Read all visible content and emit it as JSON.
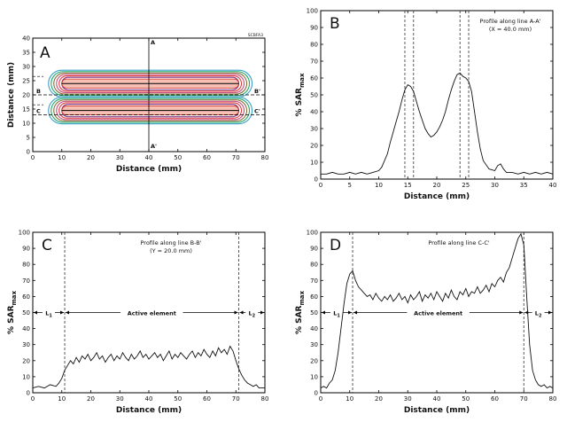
{
  "chart_data": [
    {
      "id": "A",
      "type": "heatmap",
      "panel_letter": "A",
      "xlabel": "Distance (mm)",
      "ylabel": "Distance (mm)",
      "xlim": [
        0,
        80
      ],
      "ylim": [
        0,
        40
      ],
      "xticks": [
        "0",
        "10",
        "20",
        "30",
        "40",
        "50",
        "60",
        "70",
        "80"
      ],
      "yticks": [
        "0",
        "5",
        "10",
        "15",
        "20",
        "25",
        "30",
        "35",
        "40"
      ],
      "corner_label": "SCBFA3",
      "line_labels": {
        "A": "A",
        "A_prime": "A'",
        "B": "B",
        "B_prime": "B'",
        "C": "C",
        "C_prime": "C'"
      },
      "elements": [
        {
          "y_center": 24.0,
          "x_start": 10,
          "x_end": 71,
          "half_width": 2.2
        },
        {
          "y_center": 14.5,
          "x_start": 10,
          "x_end": 71,
          "half_width": 2.2
        }
      ],
      "profile_x": 40,
      "contour_colors": [
        "#3aa0c8",
        "#1fa86a",
        "#8a6d3b",
        "#c94f7c",
        "#e23b3b",
        "#7a3a8c"
      ]
    },
    {
      "id": "B",
      "type": "line",
      "panel_letter": "B",
      "title": "Profile along line A-A'",
      "subtitle": "(X = 40.0 mm)",
      "xlabel": "Distance (mm)",
      "ylabel_main": "% SAR",
      "ylabel_sub": "max",
      "xlim": [
        0,
        40
      ],
      "ylim": [
        0,
        100
      ],
      "xticks": [
        "0",
        "5",
        "10",
        "15",
        "20",
        "25",
        "30",
        "35",
        "40"
      ],
      "yticks": [
        "0",
        "10",
        "20",
        "30",
        "40",
        "50",
        "60",
        "70",
        "80",
        "90",
        "100"
      ],
      "dashed_x": [
        14.5,
        16.0,
        24.0,
        25.5
      ],
      "x": [
        0,
        1,
        2,
        3,
        4,
        5,
        6,
        7,
        8,
        9,
        10,
        10.5,
        11,
        11.5,
        12,
        12.5,
        13,
        13.5,
        14,
        14.5,
        15,
        15.5,
        16,
        16.5,
        17,
        17.5,
        18,
        18.5,
        19,
        19.5,
        20,
        20.5,
        21,
        21.5,
        22,
        22.5,
        23,
        23.5,
        24,
        24.5,
        25,
        25.5,
        26,
        26.5,
        27,
        27.5,
        28,
        29,
        30,
        30.5,
        31,
        31.5,
        32,
        33,
        34,
        35,
        36,
        37,
        38,
        39,
        40
      ],
      "y": [
        3,
        3,
        4,
        3,
        3,
        4,
        3,
        4,
        3,
        4,
        5,
        7,
        11,
        15,
        22,
        28,
        34,
        40,
        47,
        53,
        56,
        55,
        52,
        46,
        40,
        35,
        30,
        27,
        25,
        26,
        28,
        31,
        35,
        40,
        47,
        53,
        58,
        62,
        63,
        61,
        60,
        58,
        52,
        40,
        28,
        18,
        11,
        6,
        5,
        8,
        9,
        6,
        4,
        4,
        3,
        4,
        3,
        4,
        3,
        4,
        3
      ]
    },
    {
      "id": "C",
      "type": "line",
      "panel_letter": "C",
      "title": "Profile along line B-B'",
      "subtitle": "(Y = 20.0 mm)",
      "xlabel": "Distance (mm)",
      "ylabel_main": "% SAR",
      "ylabel_sub": "max",
      "xlim": [
        0,
        80
      ],
      "ylim": [
        0,
        100
      ],
      "xticks": [
        "0",
        "10",
        "20",
        "30",
        "40",
        "50",
        "60",
        "70",
        "80"
      ],
      "yticks": [
        "0",
        "10",
        "20",
        "30",
        "40",
        "50",
        "60",
        "70",
        "80",
        "90",
        "100"
      ],
      "dashed_x": [
        11,
        71
      ],
      "arrow_y": 50,
      "L1": "L",
      "L1_sub": "1",
      "L2": "L",
      "L2_sub": "2",
      "active_label": "Active element",
      "x": [
        0,
        2,
        4,
        6,
        8,
        9,
        10,
        11,
        12,
        13,
        14,
        15,
        16,
        17,
        18,
        19,
        20,
        21,
        22,
        23,
        24,
        25,
        26,
        27,
        28,
        29,
        30,
        31,
        32,
        33,
        34,
        35,
        36,
        37,
        38,
        39,
        40,
        41,
        42,
        43,
        44,
        45,
        46,
        47,
        48,
        49,
        50,
        51,
        52,
        53,
        54,
        55,
        56,
        57,
        58,
        59,
        60,
        61,
        62,
        63,
        64,
        65,
        66,
        67,
        68,
        69,
        70,
        71,
        72,
        73,
        74,
        75,
        76,
        77,
        78,
        80
      ],
      "y": [
        3,
        4,
        3,
        5,
        4,
        6,
        9,
        14,
        17,
        20,
        18,
        22,
        19,
        23,
        21,
        24,
        20,
        22,
        25,
        21,
        23,
        19,
        22,
        24,
        20,
        23,
        21,
        25,
        22,
        20,
        24,
        21,
        23,
        26,
        22,
        24,
        21,
        23,
        25,
        22,
        24,
        20,
        23,
        26,
        21,
        24,
        22,
        25,
        23,
        21,
        24,
        26,
        22,
        25,
        23,
        27,
        24,
        22,
        26,
        23,
        28,
        25,
        27,
        24,
        29,
        26,
        20,
        15,
        11,
        8,
        6,
        5,
        4,
        5,
        3,
        3
      ]
    },
    {
      "id": "D",
      "type": "line",
      "panel_letter": "D",
      "title": "Profile along line C-C'",
      "xlabel": "Distance (mm)",
      "ylabel_main": "% SAR",
      "ylabel_sub": "max",
      "xlim": [
        0,
        80
      ],
      "ylim": [
        0,
        100
      ],
      "xticks": [
        "0",
        "10",
        "20",
        "30",
        "40",
        "50",
        "60",
        "70",
        "80"
      ],
      "yticks": [
        "0",
        "10",
        "20",
        "30",
        "40",
        "50",
        "60",
        "70",
        "80",
        "90",
        "100"
      ],
      "dashed_x": [
        11,
        70
      ],
      "arrow_y": 50,
      "L1": "L",
      "L1_sub": "1",
      "L2": "L",
      "L2_sub": "2",
      "active_label": "Active element",
      "x": [
        0,
        1,
        2,
        3,
        4,
        5,
        6,
        7,
        8,
        9,
        10,
        11,
        12,
        13,
        14,
        15,
        16,
        17,
        18,
        19,
        20,
        21,
        22,
        23,
        24,
        25,
        26,
        27,
        28,
        29,
        30,
        31,
        32,
        33,
        34,
        35,
        36,
        37,
        38,
        39,
        40,
        41,
        42,
        43,
        44,
        45,
        46,
        47,
        48,
        49,
        50,
        51,
        52,
        53,
        54,
        55,
        56,
        57,
        58,
        59,
        60,
        61,
        62,
        63,
        64,
        65,
        66,
        67,
        68,
        69,
        70,
        71,
        72,
        73,
        74,
        75,
        76,
        77,
        78,
        79,
        80
      ],
      "y": [
        3,
        4,
        3,
        6,
        8,
        14,
        25,
        40,
        55,
        68,
        74,
        76,
        70,
        66,
        64,
        62,
        60,
        61,
        58,
        62,
        59,
        57,
        60,
        58,
        61,
        57,
        59,
        62,
        58,
        60,
        56,
        61,
        58,
        60,
        63,
        57,
        61,
        59,
        62,
        58,
        63,
        60,
        57,
        62,
        59,
        64,
        60,
        58,
        63,
        61,
        65,
        60,
        63,
        62,
        66,
        62,
        64,
        67,
        63,
        68,
        66,
        70,
        72,
        69,
        75,
        78,
        84,
        90,
        96,
        99,
        92,
        60,
        30,
        14,
        8,
        5,
        4,
        5,
        3,
        4,
        3
      ]
    }
  ]
}
